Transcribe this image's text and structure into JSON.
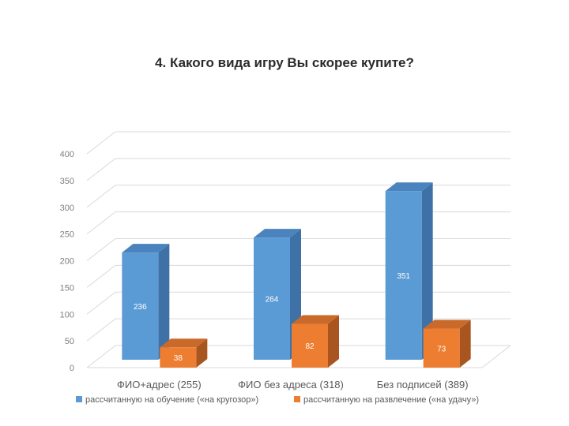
{
  "chart_data": {
    "type": "bar",
    "title": "4. Какого вида игру Вы скорее купите?",
    "categories": [
      "ФИО+адрес (255)",
      "ФИО без адреса (318)",
      "Без подписей (389)"
    ],
    "series": [
      {
        "name": "рассчитанную на обучение («на кругозор»)",
        "values": [
          236,
          264,
          351
        ],
        "color": "#5b9bd5",
        "side_color": "#3e72a6",
        "top_color": "#4a83bd"
      },
      {
        "name": "рассчитанную на развлечение («на удачу»)",
        "values": [
          38,
          82,
          73
        ],
        "color": "#ed7d31",
        "side_color": "#a85520",
        "top_color": "#c96a2a"
      }
    ],
    "yticks": [
      0,
      50,
      100,
      150,
      200,
      250,
      300,
      350,
      400
    ],
    "ylim": [
      0,
      400
    ],
    "xlabel": "",
    "ylabel": "",
    "grid": true,
    "legend": "bottom",
    "style": "3d-column"
  }
}
